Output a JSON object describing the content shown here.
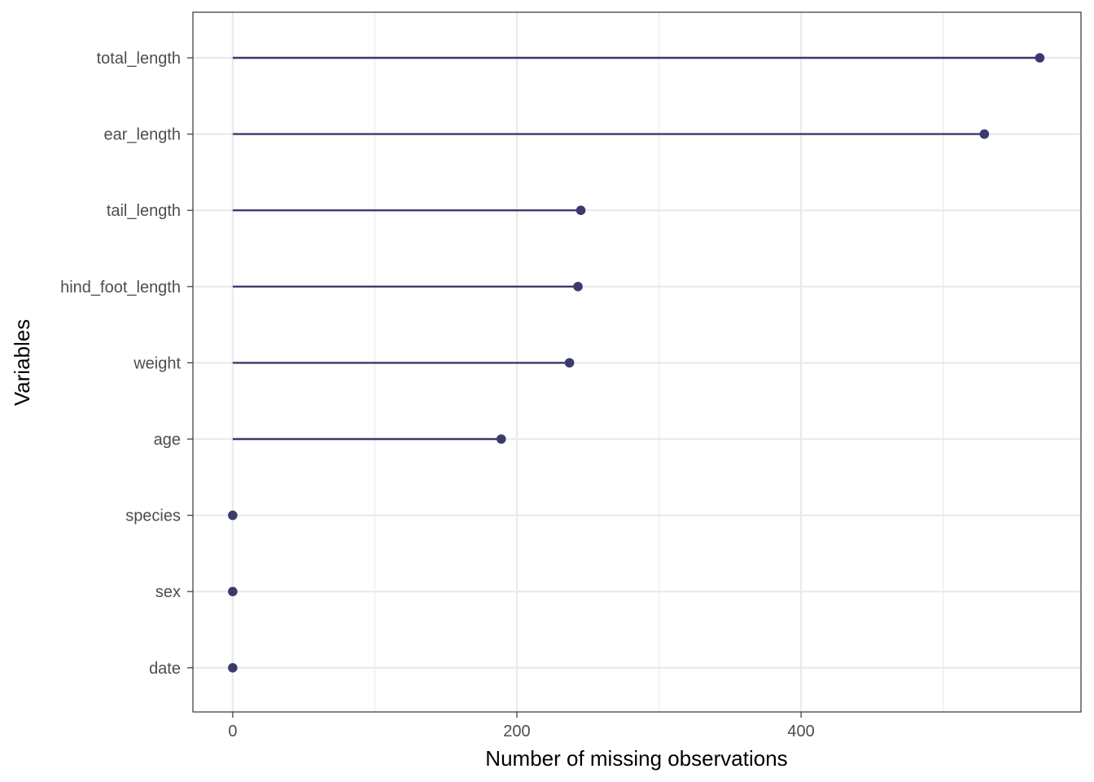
{
  "chart_data": {
    "type": "lollipop",
    "orientation": "horizontal",
    "title": "",
    "xlabel": "Number of missing observations",
    "ylabel": "Variables",
    "categories": [
      "total_length",
      "ear_length",
      "tail_length",
      "hind_foot_length",
      "weight",
      "age",
      "species",
      "sex",
      "date"
    ],
    "values": [
      568,
      529,
      245,
      243,
      237,
      189,
      0,
      0,
      0
    ],
    "xticks": [
      0,
      200,
      400
    ],
    "xlim": [
      -28,
      597
    ],
    "grid": true,
    "legend": "none",
    "colors": {
      "mark": "#3b3b6b",
      "grid": "#ebebeb",
      "panel_border": "#333333",
      "tick_label": "#4d4d4d"
    }
  }
}
